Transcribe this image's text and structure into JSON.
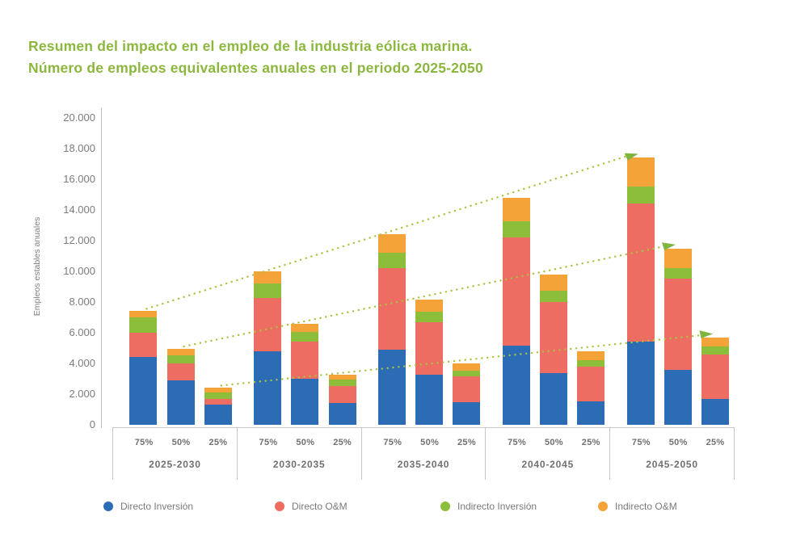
{
  "title": {
    "line1": "Resumen del impacto en el empleo de la industria eólica marina.",
    "line2": "Número de empleos equivalentes anuales en el periodo 2025-2050",
    "color": "#8CB73E"
  },
  "chart_data": {
    "type": "bar",
    "stacked": true,
    "title": "Resumen del impacto en el empleo de la industria eólica marina. Número de empleos equivalentes anuales en el periodo 2025-2050",
    "ylabel": "Empleos estables anuales",
    "ylim": [
      0,
      20000
    ],
    "grid": false,
    "legend_position": "bottom",
    "ytick_values": [
      0,
      2000,
      4000,
      6000,
      8000,
      10000,
      12000,
      14000,
      16000,
      18000,
      20000
    ],
    "ytick_labels": [
      "0",
      "2.000",
      "4.000",
      "6.000",
      "8.000",
      "10.000",
      "12.000",
      "14.000",
      "16.000",
      "18.000",
      "20.000"
    ],
    "groups": [
      "2025-2030",
      "2030-2035",
      "2035-2040",
      "2040-2045",
      "2045-2050"
    ],
    "scenarios": [
      "75%",
      "50%",
      "25%"
    ],
    "series": [
      {
        "name": "Directo Inversión",
        "color": "#2B6CB4",
        "values": [
          [
            4400,
            2900,
            1300
          ],
          [
            4800,
            3000,
            1400
          ],
          [
            4900,
            3250,
            1450
          ],
          [
            5150,
            3350,
            1500
          ],
          [
            5400,
            3600,
            1700
          ]
        ]
      },
      {
        "name": "Directo O&M",
        "color": "#ED6D62",
        "values": [
          [
            1600,
            1100,
            400
          ],
          [
            3450,
            2400,
            1100
          ],
          [
            5300,
            3450,
            1700
          ],
          [
            7050,
            4650,
            2300
          ],
          [
            9000,
            5900,
            2900
          ]
        ]
      },
      {
        "name": "Indirecto Inversión",
        "color": "#8DBE3B",
        "values": [
          [
            1000,
            550,
            400
          ],
          [
            950,
            650,
            450
          ],
          [
            1000,
            650,
            400
          ],
          [
            1050,
            750,
            400
          ],
          [
            1100,
            700,
            500
          ]
        ]
      },
      {
        "name": "Indirecto O&M",
        "color": "#F4A338",
        "values": [
          [
            400,
            400,
            300
          ],
          [
            800,
            550,
            300
          ],
          [
            1200,
            800,
            450
          ],
          [
            1550,
            1050,
            600
          ],
          [
            1900,
            1300,
            600
          ]
        ]
      }
    ],
    "stack_totals": [
      [
        7400,
        4950,
        2400
      ],
      [
        10000,
        6600,
        3250
      ],
      [
        12400,
        8150,
        4000
      ],
      [
        14800,
        9800,
        4800
      ],
      [
        17400,
        11500,
        5700
      ]
    ],
    "trend_lines": [
      {
        "scenario": "75%",
        "from_total": 7400,
        "to_total": 17400
      },
      {
        "scenario": "50%",
        "from_total": 4950,
        "to_total": 11500
      },
      {
        "scenario": "25%",
        "from_total": 2400,
        "to_total": 5700
      }
    ],
    "trend_dot_color": "#A9C340",
    "trend_arrow_color": "#7FB43E"
  },
  "legend": {
    "items": [
      {
        "label": "Directo Inversión",
        "color": "#2B6CB4"
      },
      {
        "label": "Directo O&M",
        "color": "#ED6D62"
      },
      {
        "label": "Indirecto Inversión",
        "color": "#8DBE3B"
      },
      {
        "label": "Indirecto O&M",
        "color": "#F4A338"
      }
    ]
  }
}
